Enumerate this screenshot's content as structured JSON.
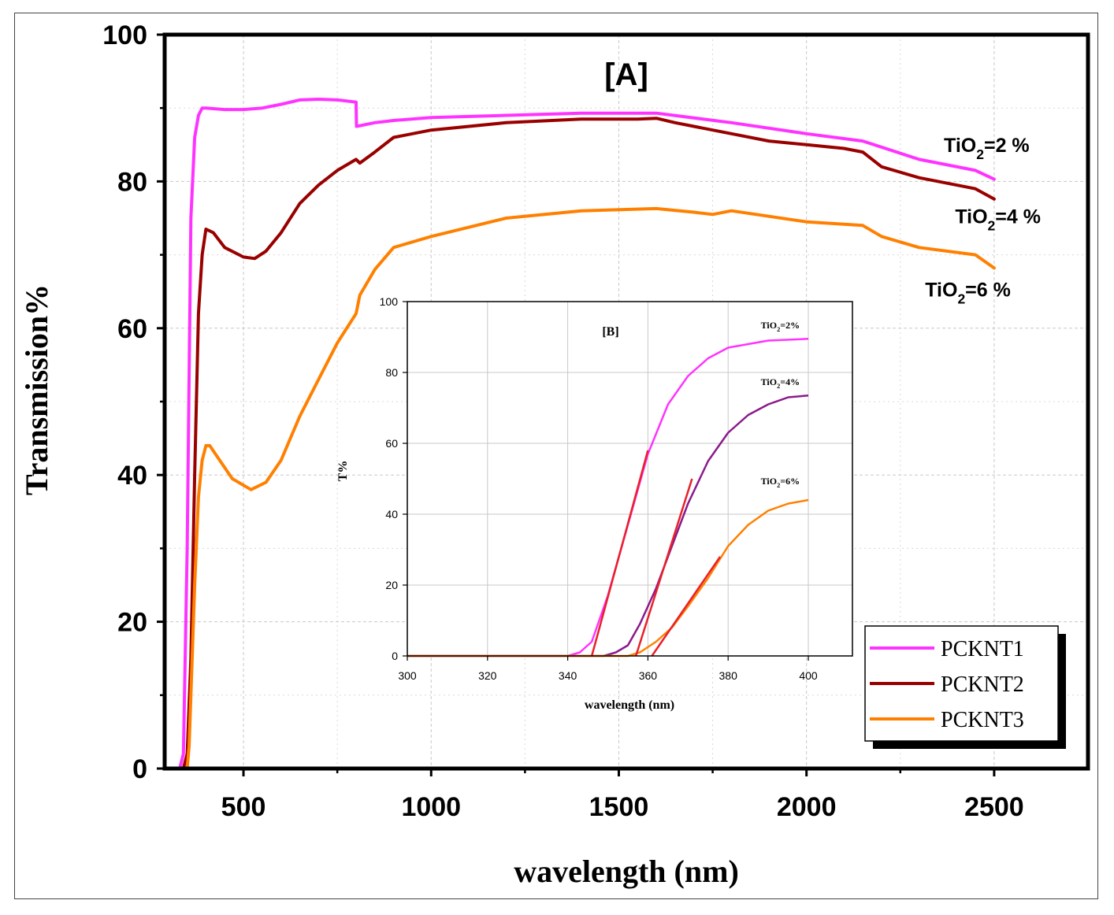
{
  "chart_data": [
    {
      "type": "line",
      "title": "[A]",
      "xlabel": "wavelength (nm)",
      "ylabel": "Transmission%",
      "xlim": [
        290,
        2750
      ],
      "ylim": [
        0,
        100
      ],
      "xticks": [
        500,
        1000,
        1500,
        2000,
        2500
      ],
      "yticks": [
        0,
        20,
        40,
        60,
        80,
        100
      ],
      "grid": true,
      "legend_position": "bottom-right",
      "series": [
        {
          "name": "PCKNT1",
          "color": "#ff33ff",
          "x": [
            300,
            330,
            340,
            350,
            360,
            370,
            380,
            390,
            400,
            450,
            500,
            550,
            600,
            650,
            700,
            750,
            800,
            801,
            850,
            900,
            1000,
            1200,
            1400,
            1600,
            1800,
            2000,
            2150,
            2300,
            2450,
            2500
          ],
          "y": [
            0,
            0,
            2,
            30,
            75,
            86,
            89,
            90,
            90,
            89.8,
            89.8,
            90,
            90.5,
            91.1,
            91.2,
            91.1,
            90.8,
            87.5,
            88,
            88.3,
            88.7,
            89,
            89.3,
            89.3,
            88,
            86.5,
            85.5,
            83,
            81.5,
            80.3
          ]
        },
        {
          "name": "PCKNT2",
          "color": "#990000",
          "x": [
            300,
            340,
            350,
            360,
            370,
            380,
            390,
            400,
            420,
            450,
            500,
            530,
            560,
            600,
            650,
            700,
            750,
            800,
            810,
            850,
            900,
            1000,
            1200,
            1400,
            1550,
            1600,
            1650,
            1700,
            1800,
            1900,
            2000,
            2100,
            2150,
            2200,
            2300,
            2450,
            2500
          ],
          "y": [
            0,
            0,
            2,
            15,
            40,
            62,
            70,
            73.5,
            73,
            71,
            69.7,
            69.5,
            70.5,
            73,
            77,
            79.5,
            81.5,
            83,
            82.5,
            84,
            86,
            87,
            88,
            88.5,
            88.5,
            88.6,
            88,
            87.5,
            86.5,
            85.5,
            85,
            84.5,
            84,
            82,
            80.5,
            79,
            77.6
          ]
        },
        {
          "name": "PCKNT3",
          "color": "#ff8000",
          "x": [
            300,
            350,
            355,
            360,
            370,
            380,
            390,
            400,
            410,
            430,
            470,
            520,
            560,
            600,
            650,
            700,
            750,
            800,
            810,
            850,
            900,
            1000,
            1200,
            1400,
            1600,
            1700,
            1750,
            1800,
            2000,
            2150,
            2200,
            2300,
            2450,
            2500
          ],
          "y": [
            0,
            0,
            3,
            10,
            25,
            37,
            42,
            44,
            44,
            42.5,
            39.5,
            38,
            39,
            42,
            48,
            53,
            58,
            62,
            64.5,
            68,
            71,
            72.5,
            75,
            76,
            76.3,
            75.8,
            75.5,
            76,
            74.5,
            74,
            72.5,
            71,
            70,
            68.2
          ]
        }
      ],
      "annotations": [
        {
          "x": 2480,
          "y": 84,
          "base": "TiO",
          "sub": "2",
          "rest": "=2 %"
        },
        {
          "x": 2510,
          "y": 74.3,
          "base": "TiO",
          "sub": "2",
          "rest": "=4 %"
        },
        {
          "x": 2430,
          "y": 64.3,
          "base": "TiO",
          "sub": "2",
          "rest": "=6 %"
        }
      ]
    },
    {
      "type": "line",
      "title": "[B]",
      "xlabel": "wavelength (nm)",
      "ylabel": "T%",
      "xlim": [
        300,
        411
      ],
      "ylim": [
        0,
        100
      ],
      "xticks": [
        300,
        320,
        340,
        360,
        380,
        400
      ],
      "yticks": [
        0,
        20,
        40,
        60,
        80,
        100
      ],
      "grid": true,
      "series": [
        {
          "name": "TiO2=2%",
          "color": "#ff33ff",
          "x": [
            300,
            340,
            343,
            346,
            350,
            355,
            360,
            365,
            370,
            375,
            380,
            390,
            400
          ],
          "y": [
            0,
            0,
            1,
            4,
            17,
            37,
            57,
            71,
            79,
            84,
            87,
            89,
            89.5
          ]
        },
        {
          "name": "TiO2=4%",
          "color": "#8b1a8b",
          "x": [
            300,
            349,
            352,
            355,
            358,
            362,
            366,
            370,
            375,
            380,
            385,
            390,
            395,
            400
          ],
          "y": [
            0,
            0,
            1,
            3,
            9,
            19,
            31,
            43,
            55,
            63,
            68,
            71,
            73,
            73.5
          ]
        },
        {
          "name": "TiO2=6%",
          "color": "#ff8000",
          "x": [
            300,
            355,
            358,
            362,
            366,
            370,
            375,
            380,
            385,
            390,
            395,
            400
          ],
          "y": [
            0,
            0,
            1,
            4,
            8,
            14,
            22,
            31,
            37,
            41,
            43,
            44
          ]
        }
      ],
      "tangents": [
        {
          "color": "#e8202a",
          "x1": 346,
          "y1": 0,
          "x2": 360,
          "y2": 58
        },
        {
          "color": "#e8202a",
          "x1": 357,
          "y1": 0,
          "x2": 371,
          "y2": 50
        },
        {
          "color": "#e8202a",
          "x1": 361,
          "y1": 0,
          "x2": 378,
          "y2": 28
        }
      ],
      "annotations": [
        {
          "x": 393,
          "y": 92.5,
          "base": "TiO",
          "sub": "2",
          "rest": "=2%"
        },
        {
          "x": 393,
          "y": 76.5,
          "base": "TiO",
          "sub": "2",
          "rest": "=4%"
        },
        {
          "x": 393,
          "y": 48.5,
          "base": "TiO",
          "sub": "2",
          "rest": "=6%"
        }
      ]
    }
  ]
}
